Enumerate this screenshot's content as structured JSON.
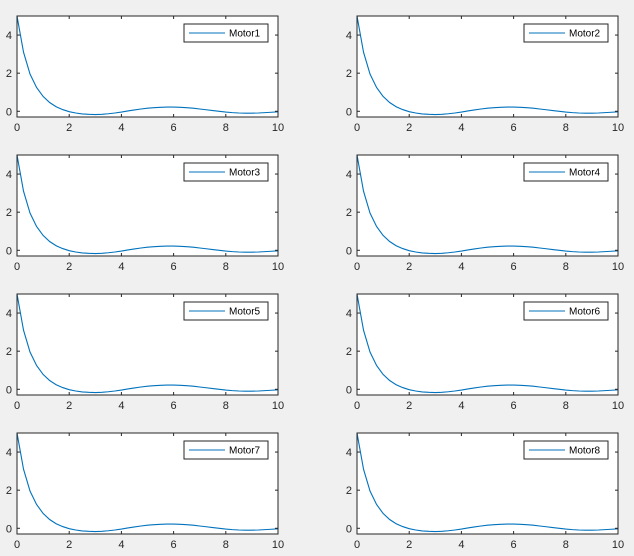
{
  "figure": {
    "background": "#f0f0f0",
    "axes_background": "#ffffff",
    "axis_color": "#262626"
  },
  "chart_data": [
    {
      "type": "line",
      "xlim": [
        0,
        10
      ],
      "ylim": [
        -0.3,
        5
      ],
      "xticks": [
        0,
        2,
        4,
        6,
        8,
        10
      ],
      "yticks": [
        0,
        2,
        4
      ],
      "legend_location": "top-right",
      "series": [
        {
          "name": "Motor1",
          "color": "#0072bd",
          "x": [
            0,
            0.25,
            0.5,
            0.75,
            1,
            1.25,
            1.5,
            1.75,
            2,
            2.25,
            2.5,
            2.75,
            3,
            3.25,
            3.5,
            3.75,
            4,
            4.25,
            4.5,
            4.75,
            5,
            5.25,
            5.5,
            5.75,
            6,
            6.25,
            6.5,
            6.75,
            7,
            7.25,
            7.5,
            7.75,
            8,
            8.25,
            8.5,
            8.75,
            9,
            9.25,
            9.5,
            9.75,
            10
          ],
          "y": [
            5,
            3.1,
            1.95,
            1.25,
            0.78,
            0.46,
            0.24,
            0.09,
            -0.02,
            -0.09,
            -0.14,
            -0.16,
            -0.17,
            -0.16,
            -0.13,
            -0.09,
            -0.04,
            0.02,
            0.07,
            0.12,
            0.16,
            0.19,
            0.21,
            0.22,
            0.22,
            0.21,
            0.19,
            0.16,
            0.12,
            0.08,
            0.04,
            0,
            -0.04,
            -0.07,
            -0.09,
            -0.1,
            -0.1,
            -0.09,
            -0.07,
            -0.05,
            -0.03
          ]
        }
      ]
    },
    {
      "type": "line",
      "xlim": [
        0,
        10
      ],
      "ylim": [
        -0.3,
        5
      ],
      "xticks": [
        0,
        2,
        4,
        6,
        8,
        10
      ],
      "yticks": [
        0,
        2,
        4
      ],
      "legend_location": "top-right",
      "series": [
        {
          "name": "Motor2",
          "color": "#0072bd",
          "x": [
            0,
            0.25,
            0.5,
            0.75,
            1,
            1.25,
            1.5,
            1.75,
            2,
            2.25,
            2.5,
            2.75,
            3,
            3.25,
            3.5,
            3.75,
            4,
            4.25,
            4.5,
            4.75,
            5,
            5.25,
            5.5,
            5.75,
            6,
            6.25,
            6.5,
            6.75,
            7,
            7.25,
            7.5,
            7.75,
            8,
            8.25,
            8.5,
            8.75,
            9,
            9.25,
            9.5,
            9.75,
            10
          ],
          "y": [
            5,
            3.1,
            1.95,
            1.25,
            0.78,
            0.46,
            0.24,
            0.09,
            -0.02,
            -0.09,
            -0.14,
            -0.16,
            -0.17,
            -0.16,
            -0.13,
            -0.09,
            -0.04,
            0.02,
            0.07,
            0.12,
            0.16,
            0.19,
            0.21,
            0.22,
            0.22,
            0.21,
            0.19,
            0.16,
            0.12,
            0.08,
            0.04,
            0,
            -0.04,
            -0.07,
            -0.09,
            -0.1,
            -0.1,
            -0.09,
            -0.07,
            -0.05,
            -0.03
          ]
        }
      ]
    },
    {
      "type": "line",
      "xlim": [
        0,
        10
      ],
      "ylim": [
        -0.3,
        5
      ],
      "xticks": [
        0,
        2,
        4,
        6,
        8,
        10
      ],
      "yticks": [
        0,
        2,
        4
      ],
      "legend_location": "top-right",
      "series": [
        {
          "name": "Motor3",
          "color": "#0072bd",
          "x": [
            0,
            0.25,
            0.5,
            0.75,
            1,
            1.25,
            1.5,
            1.75,
            2,
            2.25,
            2.5,
            2.75,
            3,
            3.25,
            3.5,
            3.75,
            4,
            4.25,
            4.5,
            4.75,
            5,
            5.25,
            5.5,
            5.75,
            6,
            6.25,
            6.5,
            6.75,
            7,
            7.25,
            7.5,
            7.75,
            8,
            8.25,
            8.5,
            8.75,
            9,
            9.25,
            9.5,
            9.75,
            10
          ],
          "y": [
            5,
            3.1,
            1.95,
            1.25,
            0.78,
            0.46,
            0.24,
            0.09,
            -0.02,
            -0.09,
            -0.14,
            -0.16,
            -0.17,
            -0.16,
            -0.13,
            -0.09,
            -0.04,
            0.02,
            0.07,
            0.12,
            0.16,
            0.19,
            0.21,
            0.22,
            0.22,
            0.21,
            0.19,
            0.16,
            0.12,
            0.08,
            0.04,
            0,
            -0.04,
            -0.07,
            -0.09,
            -0.1,
            -0.1,
            -0.09,
            -0.07,
            -0.05,
            -0.03
          ]
        }
      ]
    },
    {
      "type": "line",
      "xlim": [
        0,
        10
      ],
      "ylim": [
        -0.3,
        5
      ],
      "xticks": [
        0,
        2,
        4,
        6,
        8,
        10
      ],
      "yticks": [
        0,
        2,
        4
      ],
      "legend_location": "top-right",
      "series": [
        {
          "name": "Motor4",
          "color": "#0072bd",
          "x": [
            0,
            0.25,
            0.5,
            0.75,
            1,
            1.25,
            1.5,
            1.75,
            2,
            2.25,
            2.5,
            2.75,
            3,
            3.25,
            3.5,
            3.75,
            4,
            4.25,
            4.5,
            4.75,
            5,
            5.25,
            5.5,
            5.75,
            6,
            6.25,
            6.5,
            6.75,
            7,
            7.25,
            7.5,
            7.75,
            8,
            8.25,
            8.5,
            8.75,
            9,
            9.25,
            9.5,
            9.75,
            10
          ],
          "y": [
            5,
            3.1,
            1.95,
            1.25,
            0.78,
            0.46,
            0.24,
            0.09,
            -0.02,
            -0.09,
            -0.14,
            -0.16,
            -0.17,
            -0.16,
            -0.13,
            -0.09,
            -0.04,
            0.02,
            0.07,
            0.12,
            0.16,
            0.19,
            0.21,
            0.22,
            0.22,
            0.21,
            0.19,
            0.16,
            0.12,
            0.08,
            0.04,
            0,
            -0.04,
            -0.07,
            -0.09,
            -0.1,
            -0.1,
            -0.09,
            -0.07,
            -0.05,
            -0.03
          ]
        }
      ]
    },
    {
      "type": "line",
      "xlim": [
        0,
        10
      ],
      "ylim": [
        -0.3,
        5
      ],
      "xticks": [
        0,
        2,
        4,
        6,
        8,
        10
      ],
      "yticks": [
        0,
        2,
        4
      ],
      "legend_location": "top-right",
      "series": [
        {
          "name": "Motor5",
          "color": "#0072bd",
          "x": [
            0,
            0.25,
            0.5,
            0.75,
            1,
            1.25,
            1.5,
            1.75,
            2,
            2.25,
            2.5,
            2.75,
            3,
            3.25,
            3.5,
            3.75,
            4,
            4.25,
            4.5,
            4.75,
            5,
            5.25,
            5.5,
            5.75,
            6,
            6.25,
            6.5,
            6.75,
            7,
            7.25,
            7.5,
            7.75,
            8,
            8.25,
            8.5,
            8.75,
            9,
            9.25,
            9.5,
            9.75,
            10
          ],
          "y": [
            5,
            3.1,
            1.95,
            1.25,
            0.78,
            0.46,
            0.24,
            0.09,
            -0.02,
            -0.09,
            -0.14,
            -0.16,
            -0.17,
            -0.16,
            -0.13,
            -0.09,
            -0.04,
            0.02,
            0.07,
            0.12,
            0.16,
            0.19,
            0.21,
            0.22,
            0.22,
            0.21,
            0.19,
            0.16,
            0.12,
            0.08,
            0.04,
            0,
            -0.04,
            -0.07,
            -0.09,
            -0.1,
            -0.1,
            -0.09,
            -0.07,
            -0.05,
            -0.03
          ]
        }
      ]
    },
    {
      "type": "line",
      "xlim": [
        0,
        10
      ],
      "ylim": [
        -0.3,
        5
      ],
      "xticks": [
        0,
        2,
        4,
        6,
        8,
        10
      ],
      "yticks": [
        0,
        2,
        4
      ],
      "legend_location": "top-right",
      "series": [
        {
          "name": "Motor6",
          "color": "#0072bd",
          "x": [
            0,
            0.25,
            0.5,
            0.75,
            1,
            1.25,
            1.5,
            1.75,
            2,
            2.25,
            2.5,
            2.75,
            3,
            3.25,
            3.5,
            3.75,
            4,
            4.25,
            4.5,
            4.75,
            5,
            5.25,
            5.5,
            5.75,
            6,
            6.25,
            6.5,
            6.75,
            7,
            7.25,
            7.5,
            7.75,
            8,
            8.25,
            8.5,
            8.75,
            9,
            9.25,
            9.5,
            9.75,
            10
          ],
          "y": [
            5,
            3.1,
            1.95,
            1.25,
            0.78,
            0.46,
            0.24,
            0.09,
            -0.02,
            -0.09,
            -0.14,
            -0.16,
            -0.17,
            -0.16,
            -0.13,
            -0.09,
            -0.04,
            0.02,
            0.07,
            0.12,
            0.16,
            0.19,
            0.21,
            0.22,
            0.22,
            0.21,
            0.19,
            0.16,
            0.12,
            0.08,
            0.04,
            0,
            -0.04,
            -0.07,
            -0.09,
            -0.1,
            -0.1,
            -0.09,
            -0.07,
            -0.05,
            -0.03
          ]
        }
      ]
    },
    {
      "type": "line",
      "xlim": [
        0,
        10
      ],
      "ylim": [
        -0.3,
        5
      ],
      "xticks": [
        0,
        2,
        4,
        6,
        8,
        10
      ],
      "yticks": [
        0,
        2,
        4
      ],
      "legend_location": "top-right",
      "series": [
        {
          "name": "Motor7",
          "color": "#0072bd",
          "x": [
            0,
            0.25,
            0.5,
            0.75,
            1,
            1.25,
            1.5,
            1.75,
            2,
            2.25,
            2.5,
            2.75,
            3,
            3.25,
            3.5,
            3.75,
            4,
            4.25,
            4.5,
            4.75,
            5,
            5.25,
            5.5,
            5.75,
            6,
            6.25,
            6.5,
            6.75,
            7,
            7.25,
            7.5,
            7.75,
            8,
            8.25,
            8.5,
            8.75,
            9,
            9.25,
            9.5,
            9.75,
            10
          ],
          "y": [
            5,
            3.1,
            1.95,
            1.25,
            0.78,
            0.46,
            0.24,
            0.09,
            -0.02,
            -0.09,
            -0.14,
            -0.16,
            -0.17,
            -0.16,
            -0.13,
            -0.09,
            -0.04,
            0.02,
            0.07,
            0.12,
            0.16,
            0.19,
            0.21,
            0.22,
            0.22,
            0.21,
            0.19,
            0.16,
            0.12,
            0.08,
            0.04,
            0,
            -0.04,
            -0.07,
            -0.09,
            -0.1,
            -0.1,
            -0.09,
            -0.07,
            -0.05,
            -0.03
          ]
        }
      ]
    },
    {
      "type": "line",
      "xlim": [
        0,
        10
      ],
      "ylim": [
        -0.3,
        5
      ],
      "xticks": [
        0,
        2,
        4,
        6,
        8,
        10
      ],
      "yticks": [
        0,
        2,
        4
      ],
      "legend_location": "top-right",
      "series": [
        {
          "name": "Motor8",
          "color": "#0072bd",
          "x": [
            0,
            0.25,
            0.5,
            0.75,
            1,
            1.25,
            1.5,
            1.75,
            2,
            2.25,
            2.5,
            2.75,
            3,
            3.25,
            3.5,
            3.75,
            4,
            4.25,
            4.5,
            4.75,
            5,
            5.25,
            5.5,
            5.75,
            6,
            6.25,
            6.5,
            6.75,
            7,
            7.25,
            7.5,
            7.75,
            8,
            8.25,
            8.5,
            8.75,
            9,
            9.25,
            9.5,
            9.75,
            10
          ],
          "y": [
            5,
            3.1,
            1.95,
            1.25,
            0.78,
            0.46,
            0.24,
            0.09,
            -0.02,
            -0.09,
            -0.14,
            -0.16,
            -0.17,
            -0.16,
            -0.13,
            -0.09,
            -0.04,
            0.02,
            0.07,
            0.12,
            0.16,
            0.19,
            0.21,
            0.22,
            0.22,
            0.21,
            0.19,
            0.16,
            0.12,
            0.08,
            0.04,
            0,
            -0.04,
            -0.07,
            -0.09,
            -0.1,
            -0.1,
            -0.09,
            -0.07,
            -0.05,
            -0.03
          ]
        }
      ]
    }
  ]
}
